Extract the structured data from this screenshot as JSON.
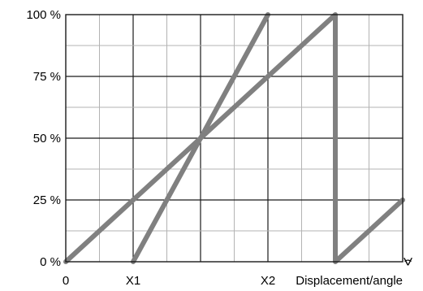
{
  "chart_data": {
    "type": "line",
    "x": [
      "0",
      "X1",
      "X2"
    ],
    "x_ticks": [
      {
        "label": "0",
        "value": 0
      },
      {
        "label": "X1",
        "value": 2
      },
      {
        "label": "X2",
        "value": 6
      }
    ],
    "xlabel": "Displacement/angle",
    "xlim": [
      0,
      10
    ],
    "y_ticks": [
      "0 %",
      "25 %",
      "50 %",
      "75 %",
      "100 %"
    ],
    "y_tick_values": [
      0,
      25,
      50,
      75,
      100
    ],
    "ylim": [
      0,
      100
    ],
    "grid": true,
    "series": [
      {
        "values": [
          [
            0,
            0
          ],
          [
            8,
            100
          ],
          [
            8,
            0
          ],
          [
            10,
            25
          ]
        ]
      },
      {
        "values": [
          [
            2,
            0
          ],
          [
            6,
            100
          ]
        ]
      }
    ],
    "colors": {
      "line": "#808080",
      "grid_major": "#1a1a1a",
      "grid_minor": "#b3b3b3"
    },
    "angle_symbol": "∢"
  }
}
